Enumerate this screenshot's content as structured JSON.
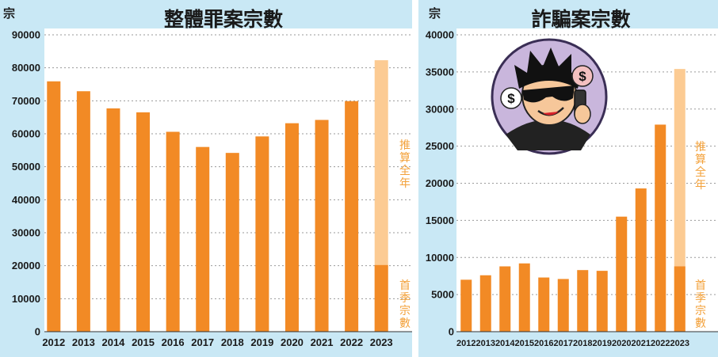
{
  "colors": {
    "bar": "#f28a25",
    "bar_projection": "#fccb93",
    "annotation_text": "#f3a13a",
    "panel_bg": "#c9e8f5",
    "plot_bg": "#ffffff",
    "grid": "#9a9a9a",
    "text": "#1a1a1a"
  },
  "illustration": {
    "description_icon": "scammer-on-phone-icon",
    "dollar_sign": "$"
  },
  "chart_data": [
    {
      "type": "bar",
      "title": "整體罪案宗數",
      "ylabel": "宗",
      "xlabel": "",
      "categories": [
        "2012",
        "2013",
        "2014",
        "2015",
        "2016",
        "2017",
        "2018",
        "2019",
        "2020",
        "2021",
        "2022",
        "2023"
      ],
      "ylim": [
        0,
        90000
      ],
      "yticks": [
        0,
        10000,
        20000,
        30000,
        40000,
        50000,
        60000,
        70000,
        80000,
        90000
      ],
      "ytick_labels": [
        "0",
        "10000",
        "20000",
        "30000",
        "40000",
        "50000",
        "60000",
        "70000",
        "80000",
        "90000"
      ],
      "grid": true,
      "series": [
        {
          "name": "首季宗數",
          "values": [
            75900,
            72900,
            67700,
            66500,
            60600,
            56000,
            54200,
            59200,
            63200,
            64200,
            69900,
            20200
          ]
        },
        {
          "name": "推算全年",
          "values": [
            null,
            null,
            null,
            null,
            null,
            null,
            null,
            null,
            null,
            null,
            null,
            82300
          ]
        }
      ],
      "annotations": [
        "推算全年",
        "首季宗數"
      ]
    },
    {
      "type": "bar",
      "title": "詐騙案宗數",
      "ylabel": "宗",
      "xlabel": "",
      "categories": [
        "2012",
        "2013",
        "2014",
        "2015",
        "2016",
        "2017",
        "2018",
        "2019",
        "2020",
        "2021",
        "2022",
        "2023"
      ],
      "ylim": [
        0,
        40000
      ],
      "yticks": [
        0,
        5000,
        10000,
        15000,
        20000,
        25000,
        30000,
        35000,
        40000
      ],
      "ytick_labels": [
        "0",
        "5000",
        "10000",
        "15000",
        "20000",
        "25000",
        "30000",
        "35000",
        "40000"
      ],
      "grid": true,
      "series": [
        {
          "name": "首季宗數",
          "values": [
            7000,
            7600,
            8800,
            9200,
            7300,
            7100,
            8300,
            8200,
            15500,
            19300,
            27900,
            8800
          ]
        },
        {
          "name": "推算全年",
          "values": [
            null,
            null,
            null,
            null,
            null,
            null,
            null,
            null,
            null,
            null,
            null,
            35400
          ]
        }
      ],
      "annotations": [
        "推算全年",
        "首季宗數"
      ]
    }
  ]
}
